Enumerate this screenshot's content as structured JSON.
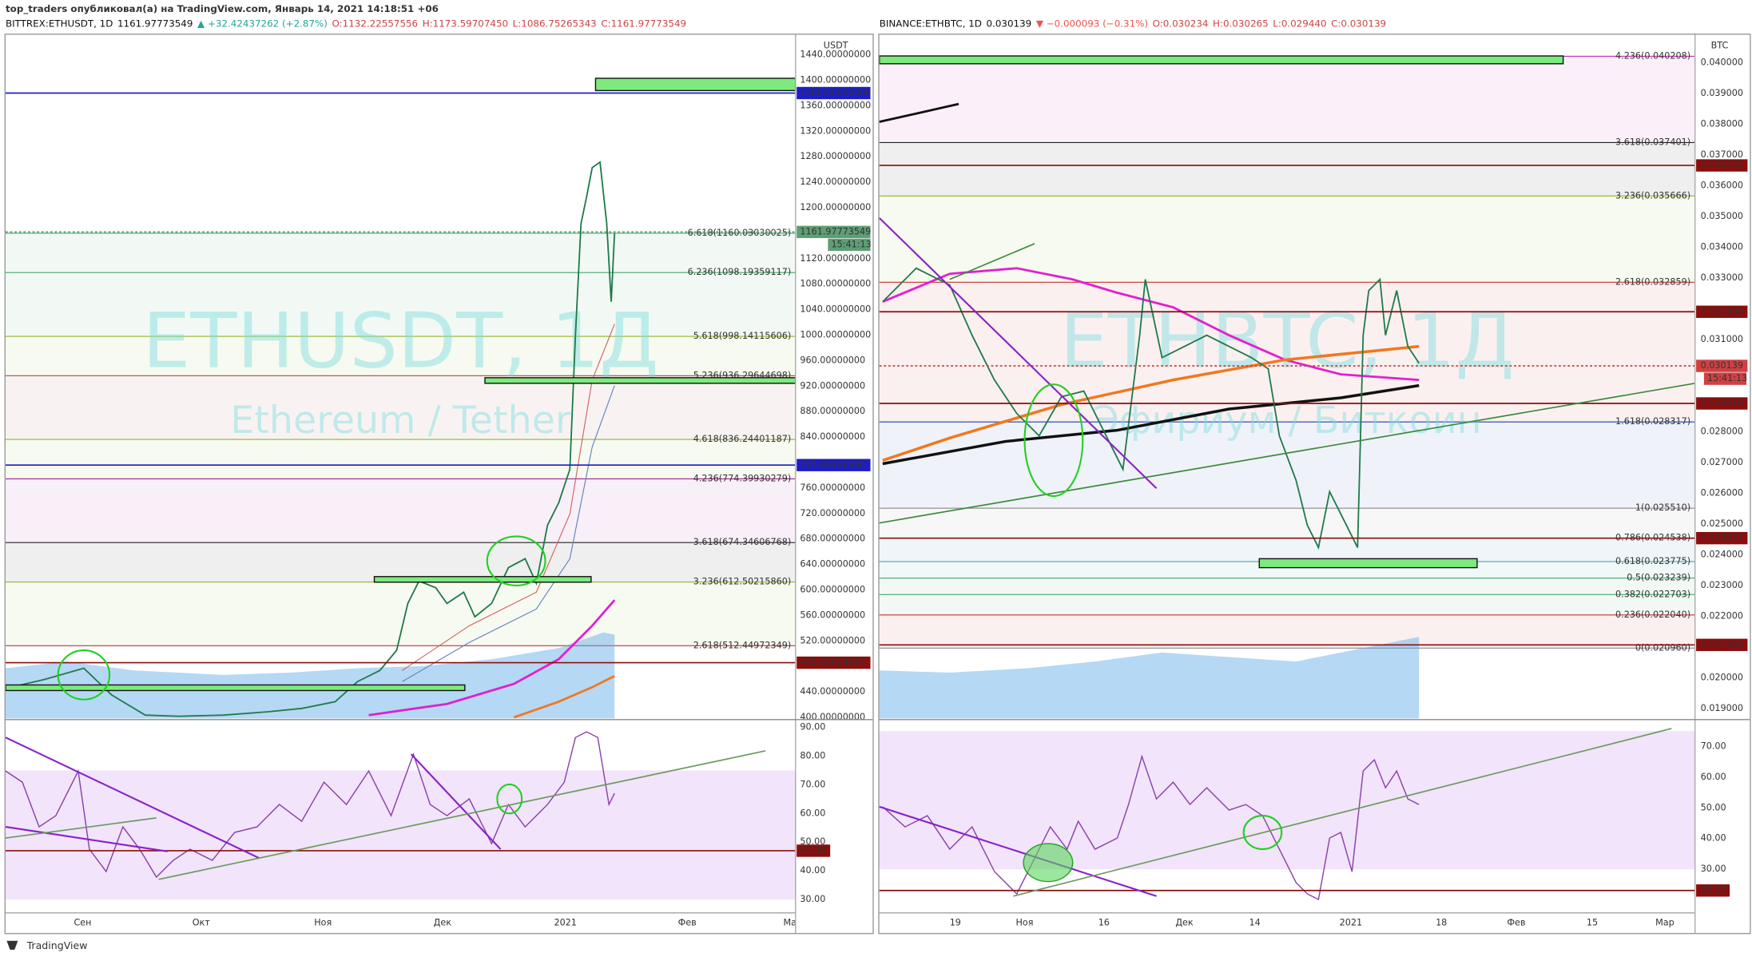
{
  "header": {
    "publisher": "top_traders опубликовал(а) на TradingView.com, Январь 14, 2021 14:18:51 +06",
    "footer": "TradingView"
  },
  "left": {
    "symbol": "BITTREX:ETHUSDT, 1D",
    "last": "1161.97773549",
    "change": "▲ +32.42437262 (+2.87%)",
    "open": "O:1132.22557556",
    "high": "H:1173.59707450",
    "low": "L:1086.75265343",
    "close": "C:1161.97773549",
    "watermark": "ETHUSDT, 1Д",
    "watermark_sub": "Ethereum / Tether",
    "currency": "USDT",
    "price_axis": [
      "1440.00000000",
      "1400.00000000",
      "1360.00000000",
      "1320.00000000",
      "1280.00000000",
      "1240.00000000",
      "1200.00000000",
      "1120.00000000",
      "1080.00000000",
      "1040.00000000",
      "1000.00000000",
      "960.00000000",
      "920.00000000",
      "880.00000000",
      "840.00000000",
      "760.00000000",
      "720.00000000",
      "680.00000000",
      "640.00000000",
      "600.00000000",
      "560.00000000",
      "520.00000000",
      "440.00000000",
      "400.00000000"
    ],
    "levels": [
      {
        "label": "1380.00000000",
        "color": "#1c1cc8"
      },
      {
        "label": "1161.97773549",
        "color": "#5e9e74",
        "timer": "15:41:13"
      },
      {
        "label": "795.99999996",
        "color": "#1c1cc8"
      },
      {
        "label": "485.80814854",
        "color": "#8b0d0d"
      }
    ],
    "fibs": [
      {
        "label": "6.618(1160.03030025)",
        "color": "#43a86a"
      },
      {
        "label": "6.236(1098.19359117)",
        "color": "#43a86a"
      },
      {
        "label": "5.618(998.14115606)",
        "color": "#8fb52e"
      },
      {
        "label": "5.236(936.29644698)",
        "color": "#a05040"
      },
      {
        "label": "4.618(836.24401187)",
        "color": "#8fb52e"
      },
      {
        "label": "4.236(774.39930279)",
        "color": "#a0209a"
      },
      {
        "label": "3.618(674.34606768)",
        "color": "#222222"
      },
      {
        "label": "3.236(612.50215860)",
        "color": "#8fb52e"
      },
      {
        "label": "2.618(512.44972349)",
        "color": "#c83030"
      }
    ],
    "rsi_axis": [
      "90.00",
      "80.00",
      "70.00",
      "60.00",
      "50.00",
      "40.00",
      "30.00"
    ],
    "rsi_level": "47.00",
    "time_axis": [
      "Сен",
      "Окт",
      "Ноя",
      "Дек",
      "2021",
      "Фев",
      "Ма"
    ]
  },
  "right": {
    "symbol": "BINANCE:ETHBTC, 1D",
    "last": "0.030139",
    "change": "▼ −0.000093 (−0.31%)",
    "open": "O:0.030234",
    "high": "H:0.030265",
    "low": "L:0.029440",
    "close": "C:0.030139",
    "watermark": "ETHBTC, 1Д",
    "watermark_sub": "Эфириум / Биткоин",
    "currency": "BTC",
    "price_axis": [
      "0.040000",
      "0.039000",
      "0.038000",
      "0.037000",
      "0.036000",
      "0.035000",
      "0.034000",
      "0.033000",
      "0.031000",
      "0.028000",
      "0.027000",
      "0.026000",
      "0.025000",
      "0.024000",
      "0.023000",
      "0.022000",
      "0.020000",
      "0.019000"
    ],
    "levels": [
      {
        "label": "0.036658",
        "color": "#8b0d0d"
      },
      {
        "label": "0.031899",
        "color": "#8b0d0d"
      },
      {
        "label": "0.030139",
        "color": "#d04040",
        "timer": "15:41:13"
      },
      {
        "label": "0.028918",
        "color": "#8b0d0d"
      },
      {
        "label": "0.024537",
        "color": "#8b0d0d"
      },
      {
        "label": "0.021066",
        "color": "#8b0d0d"
      }
    ],
    "fibs": [
      {
        "label": "4.236(0.040208)",
        "color": "#c030b0"
      },
      {
        "label": "3.618(0.037401)",
        "color": "#222222"
      },
      {
        "label": "3.236(0.035666)",
        "color": "#8fb52e"
      },
      {
        "label": "2.618(0.032859)",
        "color": "#c83030"
      },
      {
        "label": "1.618(0.028317)",
        "color": "#2040a0"
      },
      {
        "label": "1(0.025510)",
        "color": "#888888"
      },
      {
        "label": "0.786(0.024538)",
        "color": "#3070b0"
      },
      {
        "label": "0.618(0.023775)",
        "color": "#30a0a0"
      },
      {
        "label": "0.5(0.023239)",
        "color": "#43a86a"
      },
      {
        "label": "0.382(0.022703)",
        "color": "#43a86a"
      },
      {
        "label": "0.236(0.022040)",
        "color": "#c83030"
      },
      {
        "label": "0(0.020960)",
        "color": "#888888"
      }
    ],
    "rsi_axis": [
      "70.00",
      "60.00",
      "50.00",
      "40.00",
      "30.00"
    ],
    "rsi_level": "23.10",
    "time_axis": [
      "19",
      "Ноя",
      "16",
      "Дек",
      "14",
      "2021",
      "18",
      "Фев",
      "15",
      "Мар"
    ]
  }
}
